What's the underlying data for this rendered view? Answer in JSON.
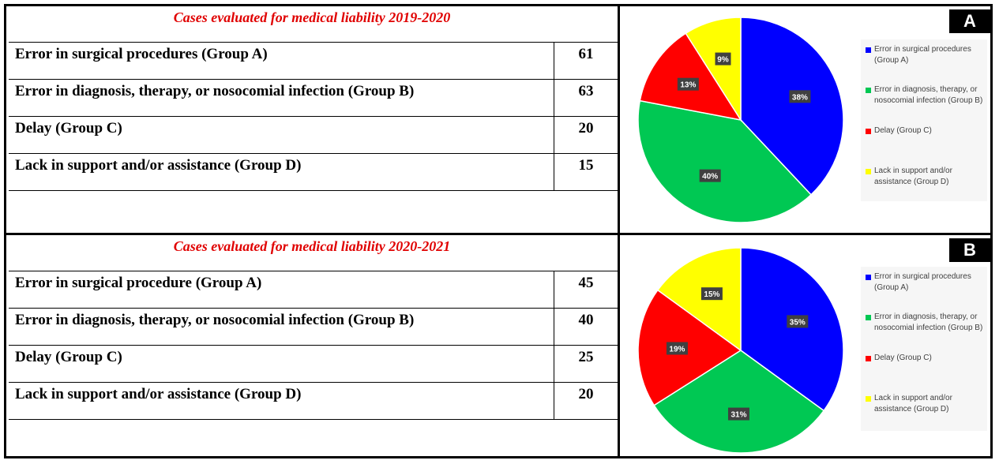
{
  "panels": [
    {
      "title": "Cases evaluated for medical liability 2019-2020",
      "rows": [
        {
          "label": "Error in surgical procedures (Group A)",
          "value": "61"
        },
        {
          "label": "Error in diagnosis, therapy, or nosocomial infection (Group B)",
          "value": "63"
        },
        {
          "label": "Delay (Group C)",
          "value": "20"
        },
        {
          "label": "Lack in support and/or assistance (Group D)",
          "value": "15"
        }
      ]
    },
    {
      "title": "Cases evaluated for medical liability 2020-2021",
      "rows": [
        {
          "label": "Error in surgical procedure (Group A)",
          "value": "45"
        },
        {
          "label": "Error in diagnosis, therapy, or nosocomial infection (Group B)",
          "value": "40"
        },
        {
          "label": "Delay (Group C)",
          "value": "25"
        },
        {
          "label": "Lack in support and/or assistance (Group D)",
          "value": "20"
        }
      ]
    }
  ],
  "legend": {
    "items": [
      {
        "label": "Error in surgical procedures (Group A)",
        "color": "#0000ff"
      },
      {
        "label": "Error in diagnosis, therapy, or nosocomial infection (Group B)",
        "color": "#00c853"
      },
      {
        "label": "Delay (Group C)",
        "color": "#ff0000"
      },
      {
        "label": "Lack in support and/or assistance (Group D)",
        "color": "#ffff00"
      }
    ]
  },
  "chart_data": [
    {
      "type": "pie",
      "panel_label": "A",
      "categories": [
        "Error in surgical procedures (Group A)",
        "Error in diagnosis, therapy, or nosocomial infection (Group B)",
        "Delay (Group C)",
        "Lack in support and/or assistance (Group D)"
      ],
      "values": [
        38,
        40,
        13,
        9
      ],
      "data_labels": [
        "38%",
        "40%",
        "13%",
        "9%"
      ],
      "colors": [
        "#0000ff",
        "#00c853",
        "#ff0000",
        "#ffff00"
      ],
      "legend_position": "right"
    },
    {
      "type": "pie",
      "panel_label": "B",
      "categories": [
        "Error in surgical procedures (Group A)",
        "Error in diagnosis, therapy, or nosocomial infection (Group B)",
        "Delay (Group C)",
        "Lack in support and/or assistance (Group D)"
      ],
      "values": [
        35,
        31,
        19,
        15
      ],
      "data_labels": [
        "35%",
        "31%",
        "19%",
        "15%"
      ],
      "colors": [
        "#0000ff",
        "#00c853",
        "#ff0000",
        "#ffff00"
      ],
      "legend_position": "right"
    }
  ]
}
